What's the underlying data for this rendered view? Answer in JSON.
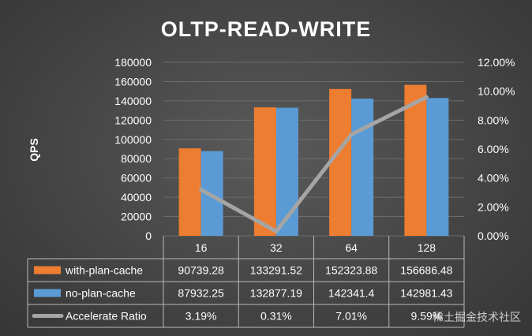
{
  "chart_data": {
    "type": "bar",
    "title": "OLTP-READ-WRITE",
    "ylabel": "QPS",
    "categories": [
      "16",
      "32",
      "64",
      "128"
    ],
    "ylim": [
      0,
      180000
    ],
    "y_ticks": [
      "0",
      "20000",
      "40000",
      "60000",
      "80000",
      "100000",
      "120000",
      "140000",
      "160000",
      "180000"
    ],
    "y2lim": [
      0,
      12
    ],
    "y2_ticks": [
      "0.00%",
      "2.00%",
      "4.00%",
      "6.00%",
      "8.00%",
      "10.00%",
      "12.00%"
    ],
    "grid": true,
    "legend": "data-table",
    "series": [
      {
        "name": "with-plan-cache",
        "kind": "bar",
        "color": "#ED7D31",
        "values": [
          90739.28,
          133291.52,
          152323.88,
          156686.48
        ],
        "labels": [
          "90739.28",
          "133291.52",
          "152323.88",
          "156686.48"
        ]
      },
      {
        "name": "no-plan-cache",
        "kind": "bar",
        "color": "#5B9BD5",
        "values": [
          87932.25,
          132877.19,
          142341.4,
          142981.43
        ],
        "labels": [
          "87932.25",
          "132877.19",
          "142341.4",
          "142981.43"
        ]
      },
      {
        "name": "Accelerate Ratio",
        "kind": "line",
        "axis": "secondary",
        "color": "#A5A5A5",
        "values": [
          3.19,
          0.31,
          7.01,
          9.59
        ],
        "labels": [
          "3.19%",
          "0.31%",
          "7.01%",
          "9.59%"
        ]
      }
    ]
  },
  "watermark": "稀土掘金技术社区"
}
